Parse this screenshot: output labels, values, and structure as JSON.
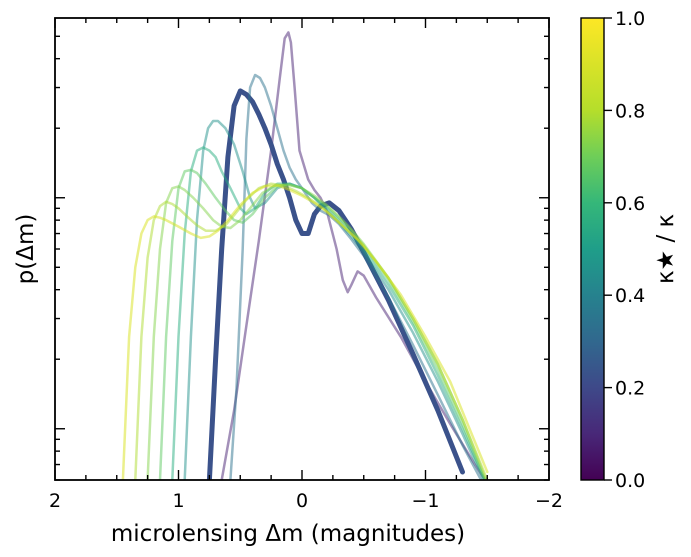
{
  "chart_data": {
    "type": "line",
    "title": "",
    "xlabel": "microlensing Δm (magnitudes)",
    "ylabel": "p(Δm)",
    "x_axis": {
      "range": [
        2,
        -2
      ],
      "ticks": [
        2,
        1,
        0,
        -1,
        -2
      ],
      "tick_labels": [
        "2",
        "1",
        "0",
        "−1",
        "−2"
      ]
    },
    "y_axis": {
      "scale": "log",
      "range": [
        0.006,
        0.6
      ],
      "ticks_labeled": false
    },
    "colorbar": {
      "label": "κ★ / κ",
      "colormap": "viridis",
      "range": [
        0.0,
        1.0
      ],
      "ticks": [
        "0.0",
        "0.2",
        "0.4",
        "0.6",
        "0.8",
        "1.0"
      ]
    },
    "series": [
      {
        "name": "κ★/κ=0.1",
        "color": "#482173",
        "highlight": false,
        "x": [
          0.65,
          0.55,
          0.45,
          0.35,
          0.25,
          0.18,
          0.14,
          0.11,
          0.09,
          0.06,
          0.02,
          -0.05,
          -0.1,
          -0.15,
          -0.2,
          -0.28,
          -0.33,
          -0.37,
          -0.4,
          -0.45,
          -0.5,
          -0.6,
          -0.8,
          -1.0,
          -1.2,
          -1.4,
          -1.5
        ],
        "y": [
          0.006,
          0.012,
          0.028,
          0.065,
          0.16,
          0.33,
          0.49,
          0.52,
          0.47,
          0.3,
          0.16,
          0.12,
          0.108,
          0.1,
          0.088,
          0.06,
          0.044,
          0.039,
          0.042,
          0.048,
          0.046,
          0.037,
          0.025,
          0.016,
          0.0105,
          0.007,
          0.0058
        ]
      },
      {
        "name": "κ★/κ=0.2",
        "color": "#3b528b",
        "highlight": true,
        "x": [
          0.75,
          0.7,
          0.65,
          0.6,
          0.55,
          0.5,
          0.45,
          0.4,
          0.35,
          0.3,
          0.25,
          0.2,
          0.15,
          0.1,
          0.05,
          0.0,
          -0.05,
          -0.1,
          -0.15,
          -0.22,
          -0.3,
          -0.4,
          -0.5,
          -0.7,
          -0.9,
          -1.1,
          -1.3
        ],
        "y": [
          0.006,
          0.02,
          0.06,
          0.15,
          0.25,
          0.29,
          0.28,
          0.26,
          0.23,
          0.2,
          0.17,
          0.14,
          0.12,
          0.1,
          0.08,
          0.07,
          0.07,
          0.085,
          0.092,
          0.095,
          0.088,
          0.073,
          0.058,
          0.036,
          0.021,
          0.012,
          0.0065
        ]
      },
      {
        "name": "κ★/κ=0.3",
        "color": "#2c718e",
        "highlight": false,
        "x": [
          0.58,
          0.53,
          0.48,
          0.45,
          0.42,
          0.38,
          0.34,
          0.3,
          0.25,
          0.2,
          0.15,
          0.1,
          0.05,
          0.0,
          -0.08,
          -0.15,
          -0.22,
          -0.3,
          -0.4,
          -0.5,
          -0.7,
          -0.9,
          -1.1,
          -1.3,
          -1.45
        ],
        "y": [
          0.006,
          0.015,
          0.06,
          0.18,
          0.3,
          0.34,
          0.33,
          0.3,
          0.25,
          0.2,
          0.16,
          0.135,
          0.12,
          0.11,
          0.095,
          0.088,
          0.084,
          0.077,
          0.066,
          0.056,
          0.037,
          0.023,
          0.014,
          0.0085,
          0.006
        ]
      },
      {
        "name": "κ★/κ=0.4",
        "color": "#21918c",
        "highlight": false,
        "x": [
          0.95,
          0.9,
          0.85,
          0.8,
          0.76,
          0.72,
          0.68,
          0.62,
          0.55,
          0.48,
          0.42,
          0.38,
          0.3,
          0.2,
          0.1,
          0.0,
          -0.1,
          -0.2,
          -0.3,
          -0.4,
          -0.5,
          -0.7,
          -0.9,
          -1.1,
          -1.3,
          -1.47
        ],
        "y": [
          0.006,
          0.025,
          0.08,
          0.16,
          0.2,
          0.215,
          0.215,
          0.2,
          0.17,
          0.13,
          0.1,
          0.09,
          0.095,
          0.11,
          0.115,
          0.11,
          0.1,
          0.088,
          0.078,
          0.068,
          0.058,
          0.04,
          0.026,
          0.016,
          0.0095,
          0.006
        ]
      },
      {
        "name": "κ★/κ=0.5",
        "color": "#28ae80",
        "highlight": false,
        "x": [
          1.05,
          1.0,
          0.95,
          0.9,
          0.85,
          0.8,
          0.75,
          0.7,
          0.65,
          0.58,
          0.5,
          0.45,
          0.38,
          0.3,
          0.2,
          0.1,
          0.0,
          -0.1,
          -0.2,
          -0.3,
          -0.4,
          -0.5,
          -0.7,
          -0.9,
          -1.1,
          -1.3,
          -1.48
        ],
        "y": [
          0.006,
          0.025,
          0.07,
          0.13,
          0.16,
          0.165,
          0.16,
          0.15,
          0.13,
          0.11,
          0.09,
          0.085,
          0.09,
          0.105,
          0.115,
          0.115,
          0.11,
          0.1,
          0.09,
          0.08,
          0.07,
          0.06,
          0.042,
          0.028,
          0.017,
          0.01,
          0.006
        ]
      },
      {
        "name": "κ★/κ=0.6",
        "color": "#5ec962",
        "highlight": false,
        "x": [
          1.15,
          1.1,
          1.05,
          1.0,
          0.95,
          0.9,
          0.85,
          0.78,
          0.7,
          0.62,
          0.55,
          0.48,
          0.4,
          0.3,
          0.2,
          0.1,
          0.0,
          -0.1,
          -0.2,
          -0.3,
          -0.4,
          -0.5,
          -0.7,
          -0.9,
          -1.1,
          -1.3,
          -1.48
        ],
        "y": [
          0.006,
          0.025,
          0.065,
          0.11,
          0.13,
          0.132,
          0.128,
          0.115,
          0.1,
          0.088,
          0.08,
          0.078,
          0.085,
          0.1,
          0.112,
          0.114,
          0.11,
          0.1,
          0.092,
          0.082,
          0.072,
          0.062,
          0.044,
          0.029,
          0.018,
          0.0105,
          0.006
        ]
      },
      {
        "name": "κ★/κ=0.7",
        "color": "#84d44b",
        "highlight": false,
        "x": [
          1.25,
          1.2,
          1.15,
          1.1,
          1.05,
          1.0,
          0.95,
          0.88,
          0.8,
          0.72,
          0.65,
          0.58,
          0.5,
          0.42,
          0.32,
          0.22,
          0.12,
          0.0,
          -0.1,
          -0.2,
          -0.3,
          -0.4,
          -0.5,
          -0.7,
          -0.9,
          -1.1,
          -1.3,
          -1.49
        ],
        "y": [
          0.006,
          0.025,
          0.06,
          0.095,
          0.11,
          0.112,
          0.108,
          0.1,
          0.09,
          0.08,
          0.075,
          0.074,
          0.08,
          0.09,
          0.105,
          0.113,
          0.114,
          0.11,
          0.102,
          0.093,
          0.083,
          0.073,
          0.063,
          0.045,
          0.03,
          0.019,
          0.011,
          0.006
        ]
      },
      {
        "name": "κ★/κ=0.8",
        "color": "#addc30",
        "highlight": false,
        "x": [
          1.35,
          1.3,
          1.25,
          1.2,
          1.15,
          1.1,
          1.05,
          1.0,
          0.92,
          0.85,
          0.78,
          0.7,
          0.62,
          0.55,
          0.45,
          0.35,
          0.25,
          0.15,
          0.05,
          -0.05,
          -0.15,
          -0.25,
          -0.35,
          -0.5,
          -0.7,
          -0.9,
          -1.1,
          -1.3,
          -1.5
        ],
        "y": [
          0.006,
          0.025,
          0.055,
          0.08,
          0.092,
          0.096,
          0.094,
          0.09,
          0.082,
          0.076,
          0.072,
          0.072,
          0.076,
          0.084,
          0.098,
          0.11,
          0.115,
          0.113,
          0.107,
          0.1,
          0.092,
          0.083,
          0.074,
          0.062,
          0.045,
          0.03,
          0.019,
          0.011,
          0.006
        ]
      },
      {
        "name": "κ★/κ=0.9",
        "color": "#d8e219",
        "highlight": false,
        "x": [
          1.45,
          1.4,
          1.35,
          1.3,
          1.25,
          1.2,
          1.15,
          1.1,
          1.0,
          0.9,
          0.82,
          0.75,
          0.68,
          0.6,
          0.5,
          0.4,
          0.3,
          0.2,
          0.1,
          0.0,
          -0.1,
          -0.2,
          -0.3,
          -0.45,
          -0.6,
          -0.8,
          -1.0,
          -1.2,
          -1.5
        ],
        "y": [
          0.006,
          0.025,
          0.05,
          0.07,
          0.08,
          0.083,
          0.082,
          0.08,
          0.075,
          0.07,
          0.067,
          0.068,
          0.072,
          0.08,
          0.093,
          0.105,
          0.112,
          0.113,
          0.108,
          0.102,
          0.095,
          0.087,
          0.078,
          0.066,
          0.053,
          0.038,
          0.025,
          0.016,
          0.0065
        ]
      }
    ]
  }
}
